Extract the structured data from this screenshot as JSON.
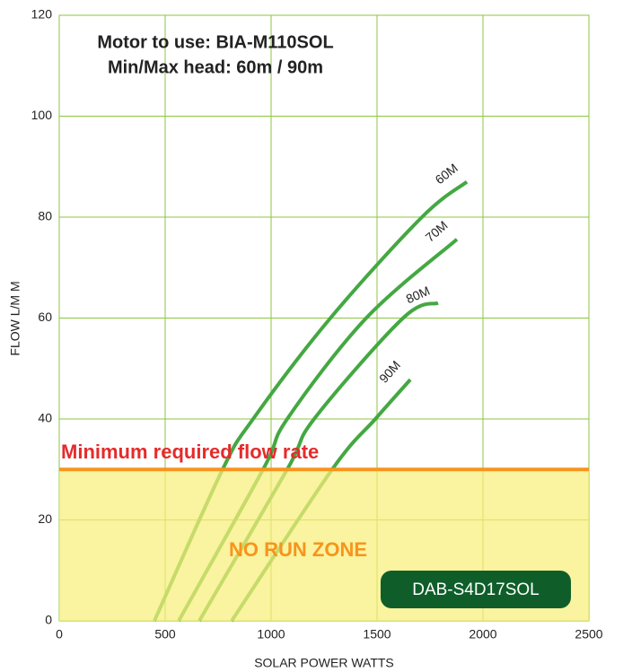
{
  "chart_data": {
    "type": "line",
    "title_lines": [
      "Motor to use: BIA-M110SOL",
      "Min/Max head: 60m / 90m"
    ],
    "xlabel": "SOLAR POWER WATTS",
    "ylabel": "FLOW L/M M",
    "xlim": [
      0,
      2500
    ],
    "xticks": [
      0,
      500,
      1000,
      1500,
      2000,
      2500
    ],
    "ylim": [
      0,
      120
    ],
    "yticks": [
      0,
      20,
      40,
      60,
      80,
      100,
      120
    ],
    "grid": true,
    "grid_color": "#8cc63f",
    "threshold": {
      "value": 30,
      "label": "Minimum required flow rate",
      "color": "#f7941d",
      "label_color": "#e52b2b"
    },
    "zone": {
      "label": "NO RUN ZONE",
      "color": "#f8ef7a",
      "label_color": "#f7941d"
    },
    "model": "DAB-S4D17SOL",
    "model_color": "#0f5e2a",
    "series": [
      {
        "name": "60M",
        "color": "#44a842",
        "x": [
          449,
          771,
          915,
          1280,
          1712,
          1924
        ],
        "values": [
          0,
          30,
          40,
          60,
          80,
          87
        ]
      },
      {
        "name": "70M",
        "color": "#44a842",
        "x": [
          564,
          962,
          1076,
          1449,
          1877
        ],
        "values": [
          0,
          30,
          40,
          60,
          75.6
        ]
      },
      {
        "name": "80M",
        "color": "#44a842",
        "x": [
          661,
          1076,
          1203,
          1623,
          1788
        ],
        "values": [
          0,
          30,
          40,
          60,
          63
        ]
      },
      {
        "name": "90M",
        "color": "#44a842",
        "x": [
          814,
          1288,
          1492,
          1657
        ],
        "values": [
          0,
          30,
          40,
          47.8
        ]
      }
    ]
  }
}
